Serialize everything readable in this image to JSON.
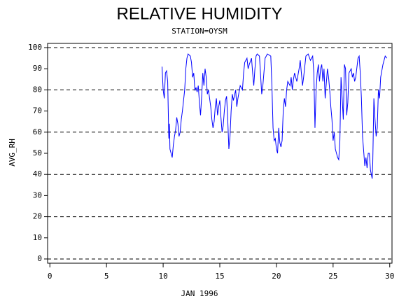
{
  "chart_data": {
    "type": "line",
    "title": "RELATIVE HUMIDITY",
    "subtitle": "STATION=OYSM",
    "x_label": "JAN 1996",
    "y_label": "AVG_RH",
    "color": "#0000ff",
    "xlim": [
      -0.2,
      30.2
    ],
    "xticks": [
      0,
      5,
      10,
      15,
      20,
      25,
      30
    ],
    "ylim": [
      -2,
      102
    ],
    "yticks": [
      0,
      10,
      20,
      30,
      40,
      50,
      60,
      70,
      80,
      90,
      100
    ],
    "gridlines": [
      0,
      20,
      40,
      60,
      80,
      100
    ],
    "x": [
      9.9,
      10.0,
      10.05,
      10.1,
      10.2,
      10.3,
      10.4,
      10.5,
      10.55,
      10.6,
      10.7,
      10.8,
      10.9,
      11.0,
      11.1,
      11.2,
      11.3,
      11.4,
      11.5,
      11.6,
      11.7,
      11.8,
      11.9,
      12.0,
      12.1,
      12.2,
      12.4,
      12.5,
      12.6,
      12.7,
      12.8,
      12.9,
      13.0,
      13.1,
      13.2,
      13.3,
      13.4,
      13.5,
      13.6,
      13.7,
      13.8,
      13.9,
      14.0,
      14.1,
      14.2,
      14.3,
      14.4,
      14.5,
      14.6,
      14.7,
      14.8,
      14.9,
      15.0,
      15.1,
      15.2,
      15.3,
      15.4,
      15.5,
      15.6,
      15.7,
      15.8,
      15.9,
      16.0,
      16.1,
      16.2,
      16.4,
      16.5,
      16.6,
      16.8,
      17.0,
      17.1,
      17.2,
      17.4,
      17.5,
      17.6,
      17.8,
      17.9,
      18.0,
      18.1,
      18.2,
      18.3,
      18.5,
      18.7,
      18.8,
      19.0,
      19.2,
      19.5,
      19.6,
      19.7,
      19.8,
      19.9,
      20.0,
      20.1,
      20.2,
      20.3,
      20.4,
      20.5,
      20.6,
      20.7,
      20.8,
      20.9,
      21.0,
      21.2,
      21.3,
      21.4,
      21.5,
      21.6,
      21.8,
      22.0,
      22.1,
      22.2,
      22.3,
      22.4,
      22.6,
      22.8,
      23.0,
      23.2,
      23.3,
      23.4,
      23.5,
      23.6,
      23.7,
      23.8,
      23.9,
      24.0,
      24.1,
      24.2,
      24.3,
      24.5,
      24.6,
      24.7,
      24.8,
      24.9,
      25.0,
      25.1,
      25.2,
      25.4,
      25.5,
      25.6,
      25.7,
      25.8,
      25.9,
      26.0,
      26.1,
      26.2,
      26.3,
      26.4,
      26.6,
      26.7,
      26.8,
      26.9,
      27.0,
      27.2,
      27.3,
      27.4,
      27.5,
      27.6,
      27.8,
      27.9,
      28.0,
      28.1,
      28.2,
      28.3,
      28.45,
      28.5,
      28.6,
      28.7,
      28.8,
      28.9,
      29.0,
      29.1,
      29.2,
      29.4,
      29.6,
      29.75
    ],
    "values": [
      91,
      80,
      78,
      76,
      88,
      89,
      84,
      57,
      64,
      52,
      50,
      48,
      54,
      58,
      61,
      67,
      64,
      58,
      60,
      66,
      70,
      75,
      80,
      90,
      95,
      97,
      96,
      93,
      86,
      88,
      80,
      81,
      79,
      82,
      74,
      68,
      77,
      88,
      82,
      90,
      86,
      78,
      80,
      76,
      72,
      66,
      62,
      65,
      72,
      76,
      68,
      72,
      75,
      67,
      60,
      63,
      70,
      75,
      77,
      66,
      52,
      58,
      70,
      78,
      75,
      80,
      72,
      76,
      82,
      80,
      88,
      93,
      95,
      90,
      92,
      95,
      88,
      82,
      90,
      96,
      97,
      96,
      78,
      82,
      95,
      97,
      96,
      82,
      62,
      56,
      57,
      52,
      50,
      62,
      55,
      53,
      56,
      70,
      76,
      72,
      80,
      84,
      82,
      86,
      80,
      85,
      88,
      84,
      90,
      94,
      88,
      82,
      86,
      96,
      97,
      94,
      96,
      88,
      62,
      80,
      88,
      92,
      84,
      90,
      92,
      84,
      90,
      76,
      90,
      86,
      80,
      72,
      66,
      56,
      60,
      52,
      48,
      47,
      56,
      86,
      76,
      66,
      92,
      90,
      68,
      74,
      88,
      90,
      86,
      88,
      84,
      86,
      95,
      96,
      88,
      76,
      58,
      44,
      48,
      43,
      50,
      50,
      42,
      38,
      45,
      76,
      66,
      58,
      62,
      80,
      76,
      86,
      92,
      96,
      95
    ]
  }
}
